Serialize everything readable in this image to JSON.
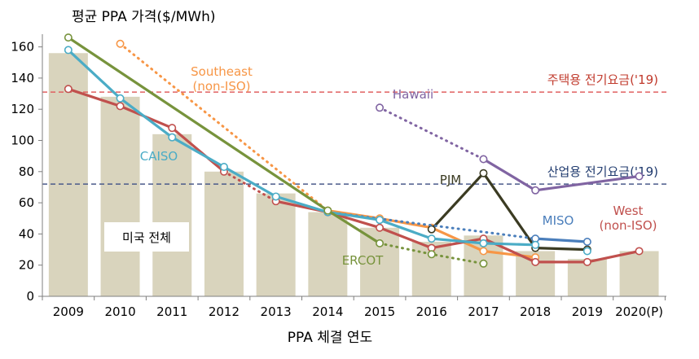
{
  "chart_data": {
    "type": "bar",
    "title": "평균 PPA 가격($/MWh)",
    "xlabel": "PPA 체결 연도",
    "ylabel": "",
    "ylim": [
      0,
      170
    ],
    "yticks": [
      0,
      20,
      40,
      60,
      80,
      100,
      120,
      140,
      160
    ],
    "categories": [
      "2009",
      "2010",
      "2011",
      "2012",
      "2013",
      "2014",
      "2015",
      "2016",
      "2017",
      "2018",
      "2019",
      "2020(P)"
    ],
    "bars": {
      "name": "미국 전체",
      "color": "#d9d4bd",
      "values": [
        156,
        128,
        104,
        80,
        66,
        54,
        44,
        35,
        39,
        29,
        24,
        29
      ]
    },
    "reference_lines": [
      {
        "label": "주택용 전기요금('19)",
        "value": 131,
        "color": "#e06060",
        "label_color": "#c0392b"
      },
      {
        "label": "산업용 전기요금('19)",
        "value": 72,
        "color": "#4a5a8a",
        "label_color": "#1f3a6e"
      }
    ],
    "series": [
      {
        "name": "Southeast (non-ISO)",
        "color": "#f79646",
        "values": [
          null,
          162,
          null,
          null,
          null,
          55,
          50,
          44,
          29,
          25,
          null,
          null
        ],
        "segments": [
          {
            "from": 1,
            "to": 5,
            "dotted": true
          },
          {
            "from": 5,
            "to": 9,
            "dotted": false
          }
        ]
      },
      {
        "name": "Hawaii",
        "color": "#8064a2",
        "values": [
          null,
          null,
          null,
          null,
          null,
          null,
          121,
          null,
          88,
          68,
          null,
          77
        ],
        "segments": [
          {
            "from": 6,
            "to": 8,
            "dotted": true
          },
          {
            "from": 8,
            "to": 11,
            "dotted": false
          }
        ]
      },
      {
        "name": "PJM",
        "color": "#3b3b22",
        "values": [
          null,
          null,
          null,
          null,
          null,
          null,
          null,
          43,
          79,
          31,
          30,
          null
        ],
        "segments": [
          {
            "from": 7,
            "to": 10,
            "dotted": false
          }
        ]
      },
      {
        "name": "MISO",
        "color": "#4a7ebb",
        "values": [
          null,
          null,
          null,
          null,
          null,
          54,
          null,
          null,
          null,
          37,
          35,
          null
        ],
        "segments": [
          {
            "from": 5,
            "to": 9,
            "dotted": true
          },
          {
            "from": 9,
            "to": 10,
            "dotted": false
          }
        ]
      },
      {
        "name": "West (non-ISO)",
        "color": "#c0504d",
        "values": [
          133,
          122,
          108,
          80,
          61,
          54,
          44,
          31,
          37,
          22,
          22,
          29
        ],
        "segments": [
          {
            "from": 0,
            "to": 3,
            "dotted": false
          },
          {
            "from": 3,
            "to": 4,
            "dotted": true
          },
          {
            "from": 4,
            "to": 11,
            "dotted": false
          }
        ]
      },
      {
        "name": "CAISO",
        "color": "#4bacc6",
        "values": [
          158,
          null,
          127,
          102,
          83,
          64,
          54,
          49,
          37,
          34,
          33,
          29
        ],
        "x_override": [
          0,
          null,
          1,
          2,
          3,
          4,
          5,
          6,
          7,
          8,
          9,
          10
        ],
        "segments": [
          {
            "from": 0,
            "to": 10,
            "dotted": false
          }
        ]
      },
      {
        "name": "ERCOT",
        "color": "#77933c",
        "values": [
          166,
          null,
          null,
          null,
          null,
          55,
          34,
          27,
          21,
          null,
          null,
          null
        ],
        "segments": [
          {
            "from": 0,
            "to": 6,
            "dotted": false
          },
          {
            "from": 6,
            "to": 8,
            "dotted": true
          }
        ]
      }
    ],
    "series_labels": [
      {
        "text": "Southeast",
        "color": "#f79646"
      },
      {
        "text": "(non-ISO)",
        "color": "#f79646"
      },
      {
        "text": "Hawaii",
        "color": "#8064a2"
      },
      {
        "text": "PJM",
        "color": "#3b3b22"
      },
      {
        "text": "MISO",
        "color": "#4a7ebb"
      },
      {
        "text": "West",
        "color": "#c0504d"
      },
      {
        "text": "(non-ISO)",
        "color": "#c0504d"
      },
      {
        "text": "CAISO",
        "color": "#4bacc6"
      },
      {
        "text": "ERCOT",
        "color": "#77933c"
      }
    ],
    "grid": false,
    "legend": "none"
  }
}
